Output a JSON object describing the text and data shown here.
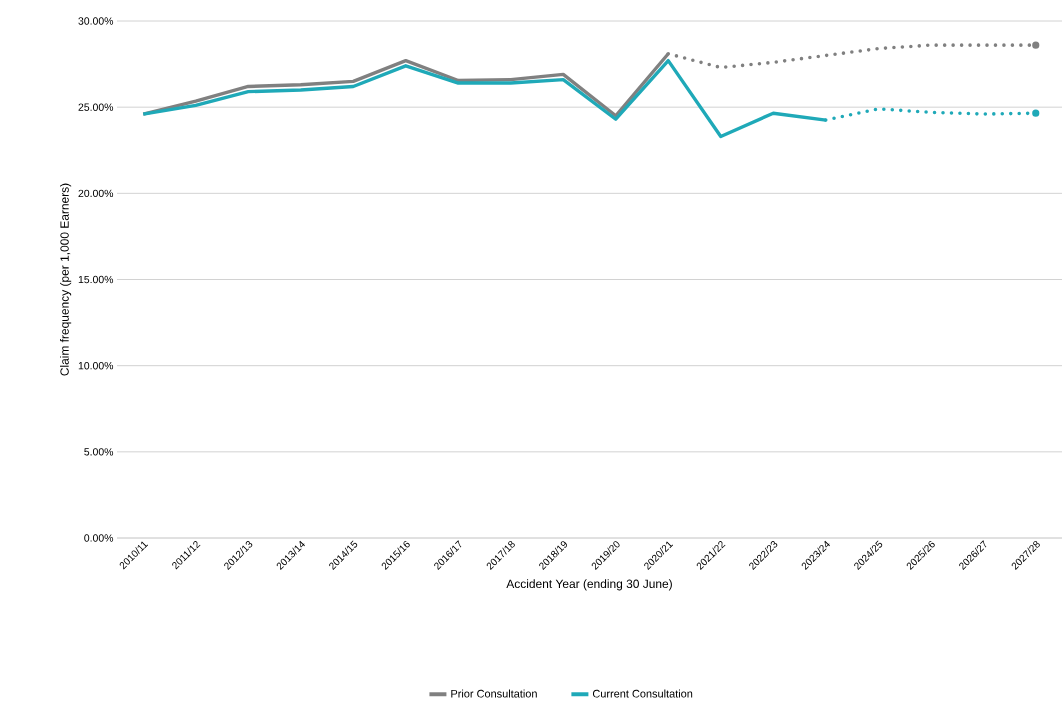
{
  "chart_data": {
    "type": "line",
    "xlabel": "Accident Year (ending 30 June)",
    "ylabel": "Claim frequency (per 1,000 Earners)",
    "categories": [
      "2010/11",
      "2011/12",
      "2012/13",
      "2013/14",
      "2014/15",
      "2015/16",
      "2016/17",
      "2017/18",
      "2018/19",
      "2019/20",
      "2020/21",
      "2021/22",
      "2022/23",
      "2023/24",
      "2024/25",
      "2025/26",
      "2026/27",
      "2027/28"
    ],
    "series": [
      {
        "name": "Prior Consultation",
        "color": "#808080",
        "line_style": "solid",
        "values": [
          24.6,
          25.35,
          26.2,
          26.3,
          26.5,
          27.7,
          26.55,
          26.6,
          26.9,
          24.5,
          28.1,
          null,
          null,
          null,
          null,
          null,
          null,
          null
        ]
      },
      {
        "color": "#808080",
        "line_style": "dotted",
        "values": [
          null,
          null,
          null,
          null,
          null,
          null,
          null,
          null,
          null,
          null,
          28.1,
          27.3,
          27.6,
          28.0,
          28.4,
          28.6,
          28.6,
          28.6
        ]
      },
      {
        "name": "Current Consultation",
        "color": "#1fa9b8",
        "line_style": "solid",
        "values": [
          24.6,
          25.1,
          25.9,
          26.0,
          26.2,
          27.4,
          26.4,
          26.4,
          26.6,
          24.3,
          27.7,
          23.3,
          24.65,
          24.25,
          null,
          null,
          null,
          null
        ]
      },
      {
        "color": "#1fa9b8",
        "line_style": "dotted",
        "values": [
          null,
          null,
          null,
          null,
          null,
          null,
          null,
          null,
          null,
          null,
          null,
          null,
          null,
          24.25,
          24.9,
          24.7,
          24.6,
          24.65
        ]
      }
    ],
    "ylim": [
      0,
      30
    ],
    "yticks": [
      {
        "value": 0,
        "label": "0.00%"
      },
      {
        "value": 5,
        "label": "5.00%"
      },
      {
        "value": 10,
        "label": "10.00%"
      },
      {
        "value": 15,
        "label": "15.00%"
      },
      {
        "value": 20,
        "label": "20.00%"
      },
      {
        "value": 25,
        "label": "25.00%"
      },
      {
        "value": 30,
        "label": "30.00%"
      }
    ],
    "grid": "y",
    "legend": "bottom",
    "marker": "none"
  }
}
